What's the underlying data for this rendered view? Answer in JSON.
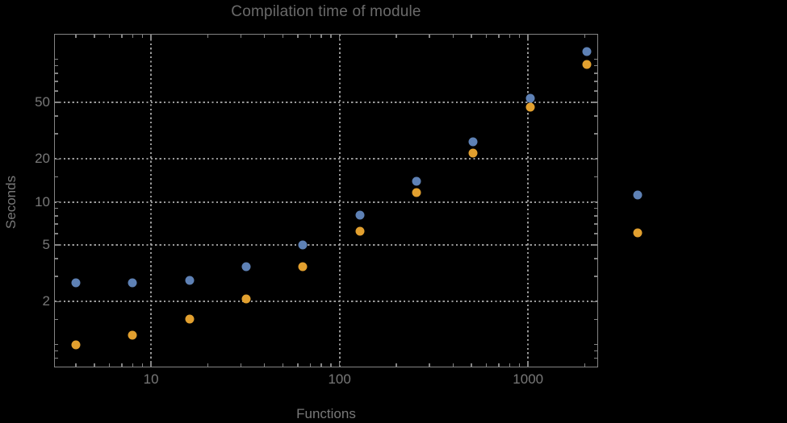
{
  "colors": {
    "background": "#000000",
    "frame": "#848484",
    "grid": "#9a9a9a",
    "text": "#787878",
    "title": "#6a6a6a",
    "series1": "#5e81b5",
    "series2": "#e2a02f"
  },
  "chart_data": {
    "type": "scatter",
    "title": "Compilation time of module",
    "xlabel": "Functions",
    "ylabel": "Seconds",
    "x_scale": "log",
    "y_scale": "log",
    "xlim": [
      3.09,
      2330
    ],
    "ylim": [
      0.7,
      149
    ],
    "grid": true,
    "x_major_ticks": [
      10,
      100,
      1000
    ],
    "x_major_labels": [
      "10",
      "100",
      "1000"
    ],
    "x_minor_ticks": [
      4,
      5,
      6,
      7,
      8,
      9,
      20,
      30,
      40,
      50,
      60,
      70,
      80,
      90,
      200,
      300,
      400,
      500,
      600,
      700,
      800,
      900,
      2000
    ],
    "y_major_ticks": [
      2,
      5,
      10,
      20,
      50
    ],
    "y_major_labels": [
      "2",
      "5",
      "10",
      "20",
      "50"
    ],
    "y_minor_ticks": [
      0.8,
      0.9,
      1,
      1.5,
      3,
      4,
      6,
      7,
      8,
      9,
      15,
      30,
      40,
      60,
      70,
      80,
      90,
      100
    ],
    "x": [
      4,
      8,
      16,
      32,
      64,
      128,
      256,
      512,
      1024,
      2048
    ],
    "series": [
      {
        "name": "series-blue",
        "color": "#5e81b5",
        "values": [
          2.7,
          2.7,
          2.8,
          3.5,
          5.0,
          8.1,
          14,
          26.5,
          53,
          113
        ]
      },
      {
        "name": "series-orange",
        "color": "#e2a02f",
        "values": [
          1.0,
          1.17,
          1.5,
          2.1,
          3.5,
          6.2,
          11.6,
          22,
          46,
          92
        ]
      }
    ],
    "legend": {
      "labels_visible": false,
      "markers": [
        {
          "series": "series-blue",
          "color": "#5e81b5"
        },
        {
          "series": "series-orange",
          "color": "#e2a02f"
        }
      ]
    }
  }
}
